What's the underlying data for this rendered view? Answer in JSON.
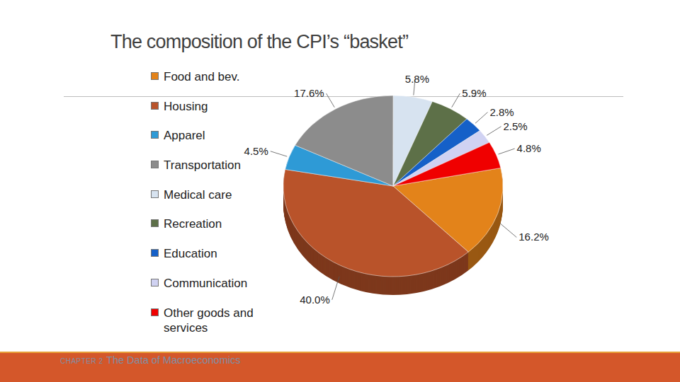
{
  "chart_data": {
    "type": "pie",
    "title": "The composition of the CPI’s “basket”",
    "categories": [
      "Food and bev.",
      "Housing",
      "Apparel",
      "Transportation",
      "Medical care",
      "Recreation",
      "Education",
      "Communication",
      "Other goods and services"
    ],
    "values": [
      16.2,
      40.0,
      4.5,
      17.6,
      5.8,
      5.9,
      2.8,
      2.5,
      4.8
    ],
    "value_labels": [
      "16.2%",
      "40.0%",
      "4.5%",
      "17.6%",
      "5.8%",
      "5.9%",
      "2.8%",
      "2.5%",
      "4.8%"
    ],
    "colors": [
      "#e3831a",
      "#b9532a",
      "#2e9ad6",
      "#8c8c8c",
      "#d7e3f0",
      "#5d7048",
      "#1560c8",
      "#d0d2f2",
      "#f00000"
    ],
    "data_labels": true,
    "legend": "left",
    "annotations": [
      "CHAPTER 2",
      "The Data of Macroeconomics"
    ]
  }
}
